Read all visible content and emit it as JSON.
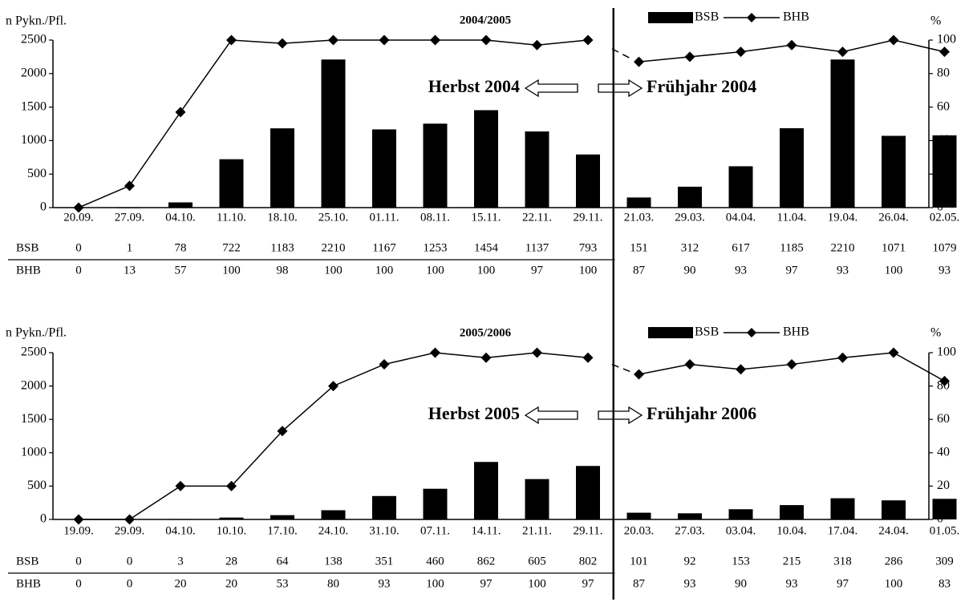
{
  "chart_data": [
    {
      "type": "bar",
      "title": "2004/2005",
      "ylabel_left": "n Pykn./Pfl.",
      "ylabel_right": "%",
      "ylim_left": [
        0,
        2500
      ],
      "ylim_right": [
        0,
        100
      ],
      "yticks_left": [
        "0",
        "500",
        "1000",
        "1500",
        "2000",
        "2500"
      ],
      "yticks_right": [
        "0",
        "20",
        "40",
        "60",
        "80",
        "100"
      ],
      "legend": {
        "position": "top-right",
        "bar_label": "BSB",
        "line_label": "BHB"
      },
      "annotations": {
        "left": "Herbst 2004",
        "right": "Frühjahr 2004"
      },
      "table_labels": [
        "BSB",
        "BHB"
      ],
      "groups": [
        {
          "name": "Herbst",
          "categories": [
            "20.09.",
            "27.09.",
            "04.10.",
            "11.10.",
            "18.10.",
            "25.10.",
            "01.11.",
            "08.11.",
            "15.11.",
            "22.11.",
            "29.11."
          ],
          "bsb": [
            0,
            1,
            78,
            722,
            1183,
            2210,
            1167,
            1253,
            1454,
            1137,
            793
          ],
          "bhb": [
            0,
            13,
            57,
            100,
            98,
            100,
            100,
            100,
            100,
            97,
            100
          ]
        },
        {
          "name": "Frühjahr",
          "categories": [
            "21.03.",
            "29.03.",
            "04.04.",
            "11.04.",
            "19.04.",
            "26.04.",
            "02.05."
          ],
          "bsb": [
            151,
            312,
            617,
            1185,
            2210,
            1071,
            1079
          ],
          "bhb": [
            87,
            90,
            93,
            97,
            93,
            100,
            93
          ]
        }
      ]
    },
    {
      "type": "bar",
      "title": "2005/2006",
      "ylabel_left": "n Pykn./Pfl.",
      "ylabel_right": "%",
      "ylim_left": [
        0,
        2500
      ],
      "ylim_right": [
        0,
        100
      ],
      "yticks_left": [
        "0",
        "500",
        "1000",
        "1500",
        "2000",
        "2500"
      ],
      "yticks_right": [
        "0",
        "20",
        "40",
        "60",
        "80",
        "100"
      ],
      "legend": {
        "position": "top-right",
        "bar_label": "BSB",
        "line_label": "BHB"
      },
      "annotations": {
        "left": "Herbst 2005",
        "right": "Frühjahr 2006"
      },
      "table_labels": [
        "BSB",
        "BHB"
      ],
      "groups": [
        {
          "name": "Herbst",
          "categories": [
            "19.09.",
            "29.09.",
            "04.10.",
            "10.10.",
            "17.10.",
            "24.10.",
            "31.10.",
            "07.11.",
            "14.11.",
            "21.11.",
            "29.11."
          ],
          "bsb": [
            0,
            0,
            3,
            28,
            64,
            138,
            351,
            460,
            862,
            605,
            802
          ],
          "bhb": [
            0,
            0,
            20,
            20,
            53,
            80,
            93,
            100,
            97,
            100,
            97
          ]
        },
        {
          "name": "Frühjahr",
          "categories": [
            "20.03.",
            "27.03.",
            "03.04.",
            "10.04.",
            "17.04.",
            "24.04.",
            "01.05."
          ],
          "bsb": [
            101,
            92,
            153,
            215,
            318,
            286,
            309
          ],
          "bhb": [
            87,
            93,
            90,
            93,
            97,
            100,
            83
          ]
        }
      ]
    }
  ]
}
